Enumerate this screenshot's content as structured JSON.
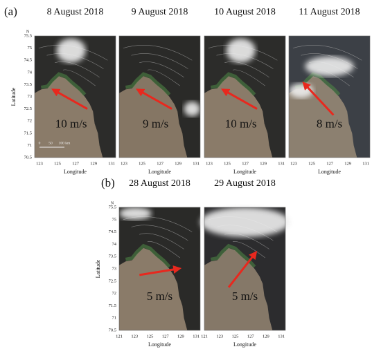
{
  "panel_a": {
    "label": "(a)",
    "maps": [
      {
        "date": "8 August 2018",
        "wind": "10 m/s"
      },
      {
        "date": "9 August 2018",
        "wind": "9 m/s"
      },
      {
        "date": "10 August 2018",
        "wind": "10 m/s"
      },
      {
        "date": "11 August 2018",
        "wind": "8 m/s"
      }
    ],
    "lat_label": "Latitude",
    "lat_unit": "N",
    "lat_ticks": [
      75.5,
      75,
      74.5,
      74,
      73.5,
      73,
      72.5,
      72,
      71.5,
      71,
      70.5
    ],
    "lon_label": "Longitude",
    "lon_ticks": [
      123,
      125,
      127,
      129,
      131
    ],
    "scale_bar": [
      "0",
      "50",
      "100 km"
    ]
  },
  "panel_b": {
    "label": "(b)",
    "maps": [
      {
        "date": "28 August 2018",
        "wind": "5 m/s"
      },
      {
        "date": "29 August 2018",
        "wind": "5 m/s"
      }
    ],
    "lat_label": "Latitude",
    "lat_unit": "N",
    "lat_ticks": [
      75.5,
      75,
      74.5,
      74,
      73.5,
      73,
      72.5,
      72,
      71.5,
      71,
      70.5
    ],
    "lon_label": "Longitude",
    "lon_ticks": [
      121,
      123,
      125,
      127,
      129,
      131
    ]
  }
}
